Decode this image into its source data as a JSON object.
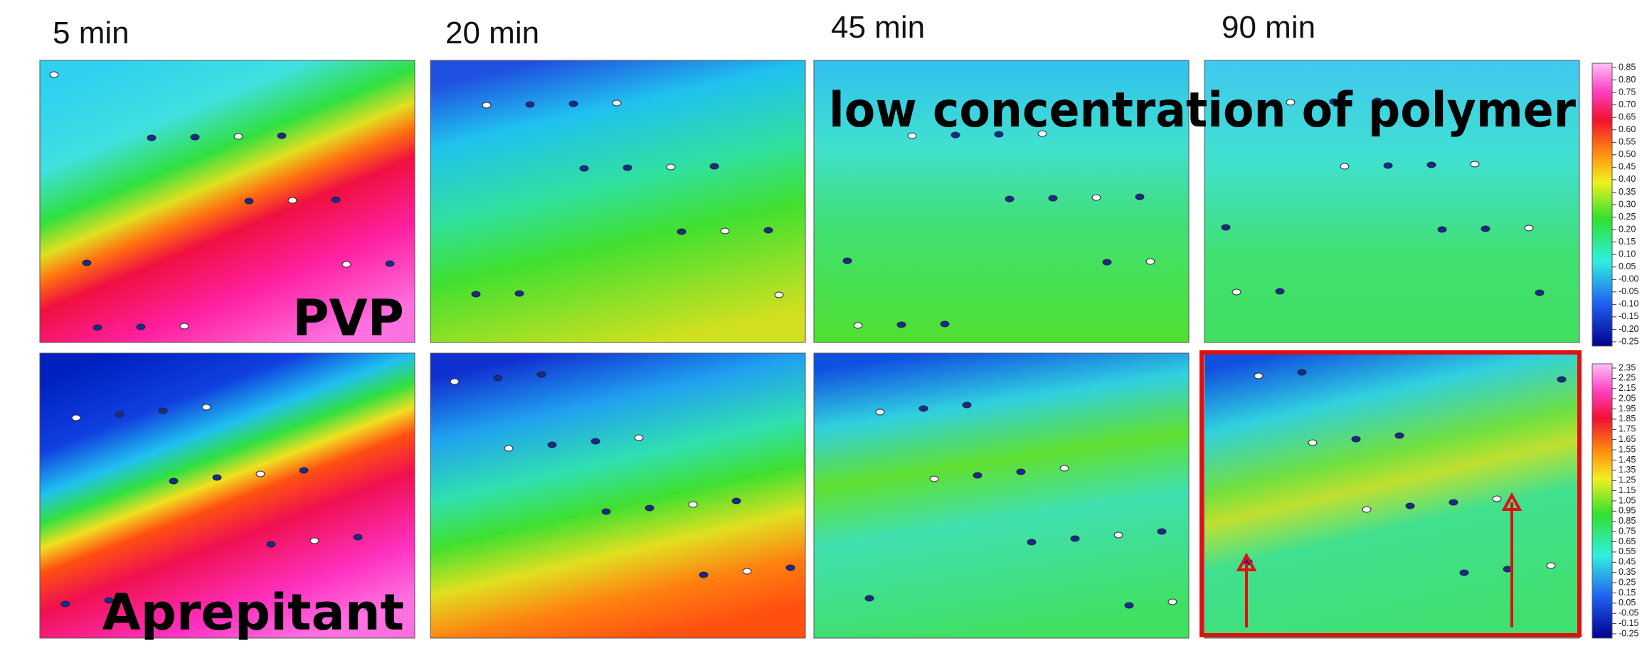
{
  "column_labels": [
    "5 min",
    "20 min",
    "45 min",
    "90 min"
  ],
  "overlay": {
    "title": "low concentration of polymer",
    "row_labels": [
      "PVP",
      "Aprepitant"
    ]
  },
  "colorbars": [
    {
      "ticks": [
        "0.85",
        "0.80",
        "0.75",
        "0.70",
        "0.65",
        "0.60",
        "0.55",
        "0.50",
        "0.45",
        "0.40",
        "0.35",
        "0.30",
        "0.25",
        "0.20",
        "0.15",
        "0.10",
        "0.05",
        "-0.00",
        "-0.05",
        "-0.10",
        "-0.15",
        "-0.20",
        "-0.25"
      ]
    },
    {
      "ticks": [
        "2.35",
        "2.25",
        "2.15",
        "2.05",
        "1.95",
        "1.85",
        "1.75",
        "1.65",
        "1.55",
        "1.45",
        "1.35",
        "1.25",
        "1.15",
        "1.05",
        "0.95",
        "0.85",
        "0.75",
        "0.65",
        "0.55",
        "0.45",
        "0.35",
        "0.25",
        "0.15",
        "0.05",
        "-0.05",
        "-0.15",
        "-0.25"
      ]
    }
  ]
}
